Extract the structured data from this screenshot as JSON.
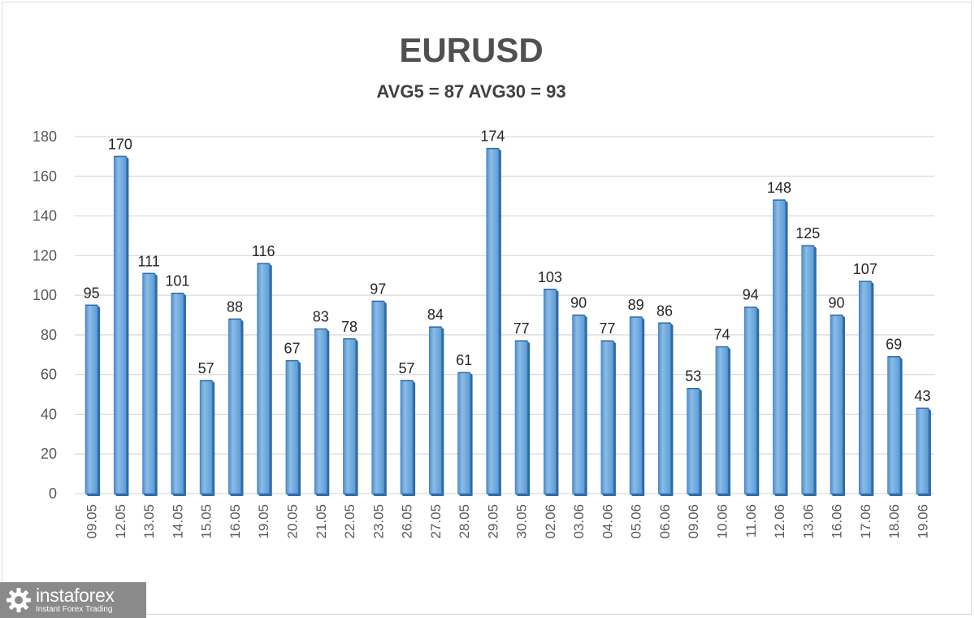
{
  "chart_data": {
    "type": "bar",
    "title": "EURUSD",
    "subtitle": "AVG5 = 87 AVG30 = 93",
    "categories": [
      "09.05",
      "12.05",
      "13.05",
      "14.05",
      "15.05",
      "16.05",
      "19.05",
      "20.05",
      "21.05",
      "22.05",
      "23.05",
      "26.05",
      "27.05",
      "28.05",
      "29.05",
      "30.05",
      "02.06",
      "03.06",
      "04.06",
      "05.06",
      "06.06",
      "09.06",
      "10.06",
      "11.06",
      "12.06",
      "13.06",
      "16.06",
      "17.06",
      "18.06",
      "19.06"
    ],
    "values": [
      95,
      170,
      111,
      101,
      57,
      88,
      116,
      67,
      83,
      78,
      97,
      57,
      84,
      61,
      174,
      77,
      103,
      90,
      77,
      89,
      86,
      53,
      74,
      94,
      148,
      125,
      90,
      107,
      69,
      43
    ],
    "ylim": [
      0,
      180
    ],
    "yticks": [
      0,
      20,
      40,
      60,
      80,
      100,
      120,
      140,
      160,
      180
    ],
    "grid": true,
    "bar_color": "#5b9bd5",
    "bar_dark": "#2e6aa8",
    "bar_light": "#9cc3e8",
    "grid_color": "#d9d9d9",
    "label_color": "#262626",
    "tick_color": "#595959"
  },
  "logo": {
    "name": "instaforex",
    "tagline": "Instant Forex Trading",
    "background": "#8a8a8a"
  }
}
